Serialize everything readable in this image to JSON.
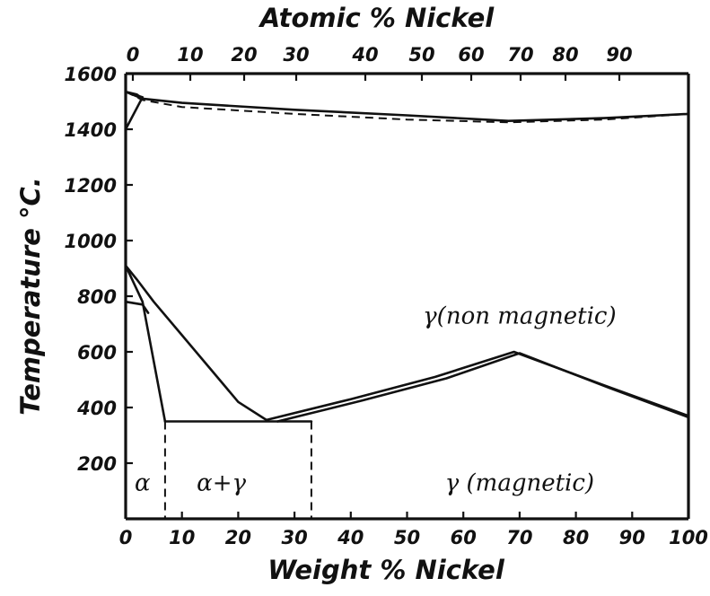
{
  "chart_data": {
    "type": "line",
    "title": "",
    "x_top_label": "Atomic % Nickel",
    "xlabel": "Weight % Nickel",
    "ylabel": "Temperature °C.",
    "xlim": [
      0,
      100
    ],
    "ylim": [
      0,
      1600
    ],
    "x_ticks": [
      "0",
      "10",
      "20",
      "30",
      "40",
      "50",
      "60",
      "70",
      "80",
      "90",
      "100"
    ],
    "x_top_ticks": [
      "0",
      "10",
      "20",
      "30",
      "40",
      "50",
      "60",
      "70",
      "80",
      "90"
    ],
    "y_ticks": [
      "200",
      "400",
      "600",
      "800",
      "1000",
      "1200",
      "1400",
      "1600"
    ],
    "grid": false,
    "legend": "none",
    "regions": [
      {
        "label": "α",
        "x": 3,
        "y": 130
      },
      {
        "label": "α+γ",
        "x": 17,
        "y": 130
      },
      {
        "label": "γ (magnetic)",
        "x": 70,
        "y": 130
      },
      {
        "label": "γ(non magnetic)",
        "x": 70,
        "y": 730
      }
    ],
    "series": [
      {
        "style": "solid",
        "points": [
          [
            0,
            1535
          ],
          [
            3,
            1510
          ],
          [
            10,
            1495
          ],
          [
            30,
            1470
          ],
          [
            50,
            1450
          ],
          [
            68,
            1430
          ],
          [
            85,
            1440
          ],
          [
            100,
            1455
          ]
        ]
      },
      {
        "style": "dashed",
        "points": [
          [
            0,
            1535
          ],
          [
            3,
            1505
          ],
          [
            10,
            1480
          ],
          [
            30,
            1455
          ],
          [
            50,
            1435
          ],
          [
            68,
            1425
          ],
          [
            85,
            1435
          ],
          [
            100,
            1455
          ]
        ]
      },
      {
        "style": "solid",
        "points": [
          [
            0,
            1535
          ],
          [
            3,
            1515
          ],
          [
            0,
            1400
          ]
        ]
      },
      {
        "style": "solid",
        "points": [
          [
            0,
            1535
          ],
          [
            2,
            1525
          ],
          [
            3,
            1510
          ]
        ]
      },
      {
        "style": "solid",
        "points": [
          [
            0,
            910
          ],
          [
            2,
            860
          ],
          [
            5,
            780
          ],
          [
            10,
            660
          ],
          [
            15,
            540
          ],
          [
            20,
            420
          ],
          [
            25,
            355
          ]
        ]
      },
      {
        "style": "solid",
        "points": [
          [
            0,
            910
          ],
          [
            3,
            780
          ],
          [
            7,
            350
          ]
        ]
      },
      {
        "style": "solid",
        "points": [
          [
            0,
            780
          ],
          [
            3,
            770
          ],
          [
            4,
            740
          ]
        ]
      },
      {
        "style": "solid",
        "points": [
          [
            7,
            350
          ],
          [
            33,
            350
          ]
        ]
      },
      {
        "style": "solid",
        "points": [
          [
            25,
            355
          ],
          [
            40,
            430
          ],
          [
            55,
            510
          ],
          [
            69,
            600
          ],
          [
            85,
            480
          ],
          [
            100,
            370
          ]
        ]
      },
      {
        "style": "solid",
        "points": [
          [
            27,
            350
          ],
          [
            42,
            425
          ],
          [
            57,
            505
          ],
          [
            70,
            595
          ],
          [
            86,
            470
          ],
          [
            100,
            365
          ]
        ]
      },
      {
        "style": "dashed",
        "points": [
          [
            7,
            350
          ],
          [
            7,
            0
          ]
        ]
      },
      {
        "style": "dashed",
        "points": [
          [
            33,
            350
          ],
          [
            33,
            0
          ]
        ]
      }
    ]
  }
}
